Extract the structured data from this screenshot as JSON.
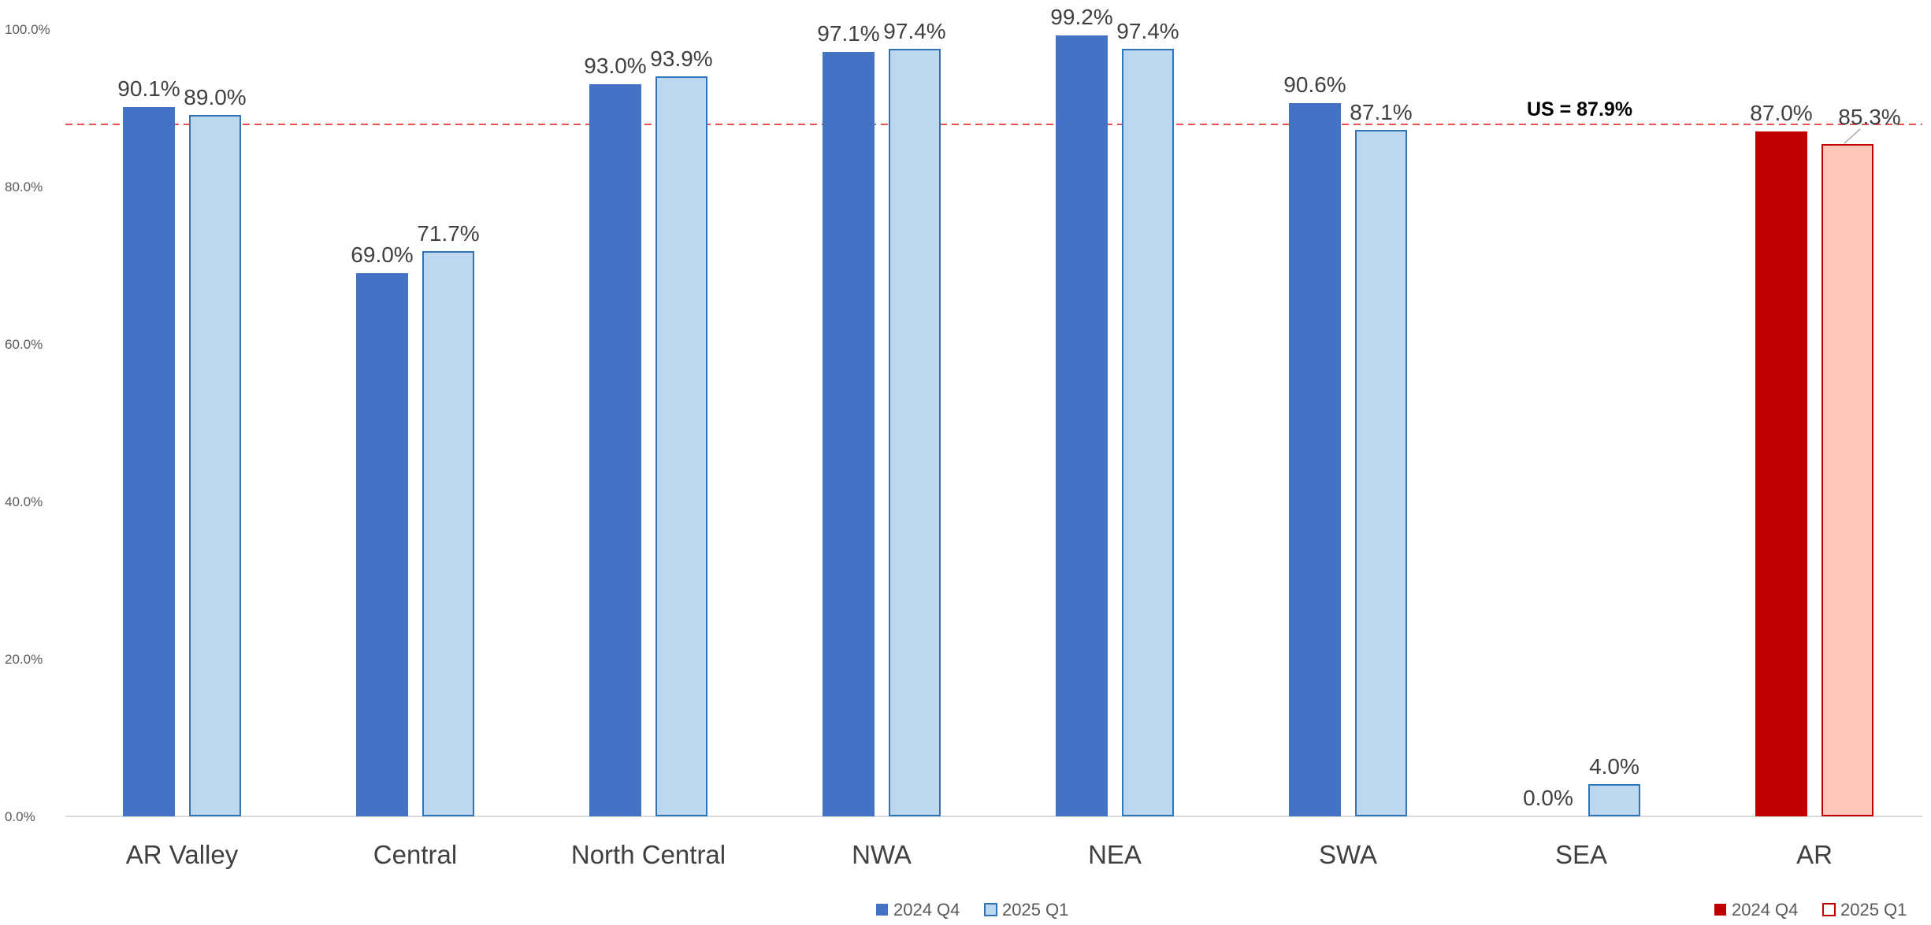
{
  "chart_data": {
    "type": "bar",
    "categories": [
      "AR Valley",
      "Central",
      "North Central",
      "NWA",
      "NEA",
      "SWA",
      "SEA",
      "AR"
    ],
    "series": [
      {
        "name": "2024 Q4",
        "values": [
          90.1,
          69.0,
          93.0,
          97.1,
          99.2,
          90.6,
          0.0,
          87.0
        ],
        "labels": [
          "90.1%",
          "69.0%",
          "93.0%",
          "97.1%",
          "99.2%",
          "90.6%",
          "0.0%",
          "87.0%"
        ]
      },
      {
        "name": "2025 Q1",
        "values": [
          89.0,
          71.7,
          93.9,
          97.4,
          97.4,
          87.1,
          4.0,
          85.3
        ],
        "labels": [
          "89.0%",
          "71.7%",
          "93.9%",
          "97.4%",
          "97.4%",
          "87.1%",
          "4.0%",
          "85.3%"
        ]
      }
    ],
    "ylim": [
      0,
      100
    ],
    "yticks": [
      "0.0%",
      "20.0%",
      "40.0%",
      "60.0%",
      "80.0%",
      "100.0%"
    ],
    "ytick_values": [
      0,
      20,
      40,
      60,
      80,
      100
    ],
    "reference_line": {
      "value": 87.9,
      "label": "US = 87.9%",
      "color": "#E8514F"
    },
    "colors": {
      "q4_fill": "#4472C4",
      "q1_fill": "#BDD7EE",
      "q1_stroke": "#2E75B6",
      "ar_q4_fill": "#C00000",
      "ar_q1_fill": "#FFC7BA",
      "ar_q1_stroke": "#C00000",
      "axis": "#D9D9D9"
    },
    "highlight_category": "AR",
    "legends": [
      {
        "position": "bottom-center",
        "entries": [
          "2024 Q4",
          "2025 Q1"
        ],
        "palette": "blue"
      },
      {
        "position": "bottom-right",
        "entries": [
          "2024 Q4",
          "2025 Q1"
        ],
        "palette": "red"
      }
    ],
    "title": "",
    "xlabel": "",
    "ylabel": ""
  }
}
